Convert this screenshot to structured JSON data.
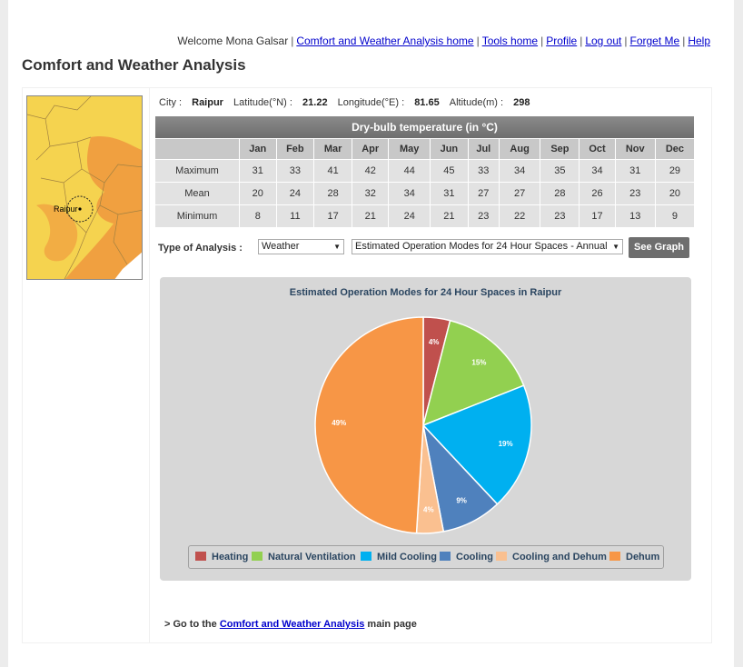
{
  "header": {
    "welcome": "Welcome Mona Galsar",
    "links": [
      "Comfort and Weather Analysis home",
      "Tools home",
      "Profile",
      "Log out",
      "Forget Me",
      "Help"
    ]
  },
  "page_title": "Comfort and Weather Analysis",
  "map": {
    "city_label": "Raipur"
  },
  "city_info": {
    "city_label": "City :",
    "city": "Raipur",
    "lat_label": "Latitude(°N) :",
    "lat": "21.22",
    "lon_label": "Longitude(°E) :",
    "lon": "81.65",
    "alt_label": "Altitude(m) :",
    "alt": "298"
  },
  "temperature_table": {
    "caption": "Dry-bulb temperature (in °C)",
    "months": [
      "Jan",
      "Feb",
      "Mar",
      "Apr",
      "May",
      "Jun",
      "Jul",
      "Aug",
      "Sep",
      "Oct",
      "Nov",
      "Dec"
    ],
    "rows": [
      {
        "label": "Maximum",
        "values": [
          "31",
          "33",
          "41",
          "42",
          "44",
          "45",
          "33",
          "34",
          "35",
          "34",
          "31",
          "29"
        ]
      },
      {
        "label": "Mean",
        "values": [
          "20",
          "24",
          "28",
          "32",
          "34",
          "31",
          "27",
          "27",
          "28",
          "26",
          "23",
          "20"
        ]
      },
      {
        "label": "Minimum",
        "values": [
          "8",
          "11",
          "17",
          "21",
          "24",
          "21",
          "23",
          "22",
          "23",
          "17",
          "13",
          "9"
        ]
      }
    ]
  },
  "analysis": {
    "label": "Type of Analysis :",
    "type_value": "Weather",
    "mode_value": "Estimated Operation Modes for 24 Hour Spaces - Annual",
    "button": "See Graph"
  },
  "chart_data": {
    "type": "pie",
    "title": "Estimated Operation Modes for 24 Hour Spaces in Raipur",
    "legend_position": "bottom",
    "slices": [
      {
        "name": "Heating",
        "value": 4,
        "label": "4%",
        "color": "#c0504d"
      },
      {
        "name": "Natural Ventilation",
        "value": 15,
        "label": "15%",
        "color": "#92d050"
      },
      {
        "name": "Mild Cooling",
        "value": 19,
        "label": "19%",
        "color": "#00b0f0"
      },
      {
        "name": "Cooling",
        "value": 9,
        "label": "9%",
        "color": "#4f81bd"
      },
      {
        "name": "Cooling and Dehum",
        "value": 4,
        "label": "4%",
        "color": "#fac090"
      },
      {
        "name": "Dehum",
        "value": 49,
        "label": "49%",
        "color": "#f79646"
      }
    ]
  },
  "footer": {
    "prefix": "> Go to the",
    "link": "Comfort and Weather Analysis",
    "suffix": "main page"
  }
}
